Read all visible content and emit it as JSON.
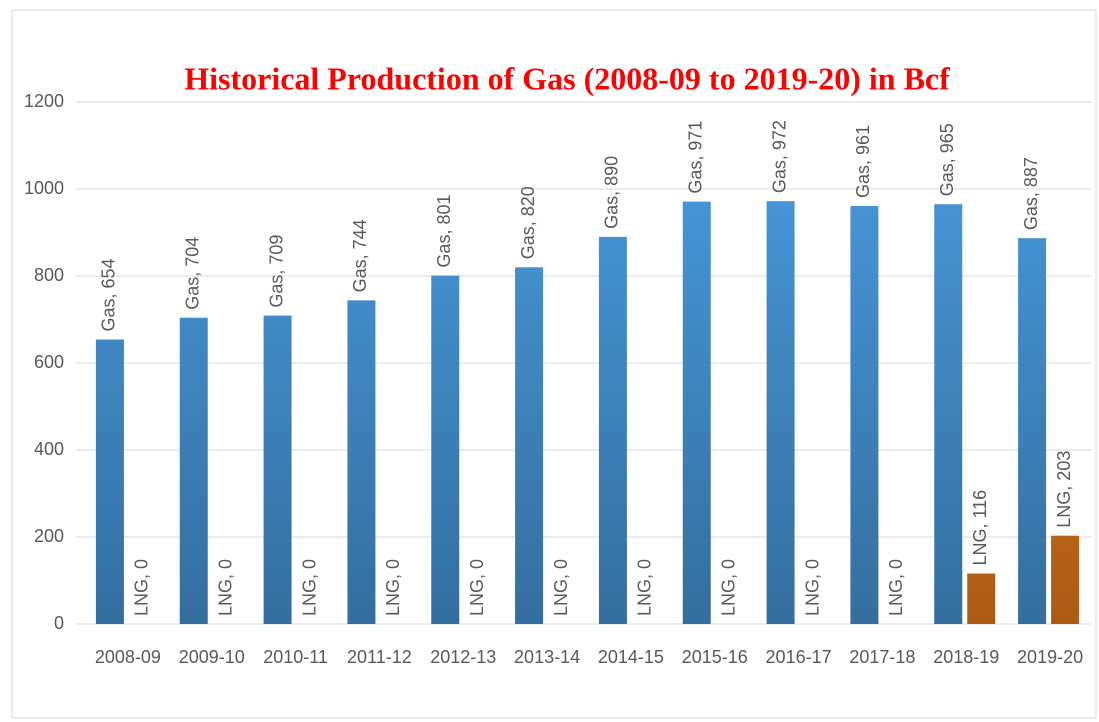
{
  "chart_data": {
    "type": "bar",
    "title": "Historical Production of Gas (2008-09 to 2019-20) in Bcf",
    "categories": [
      "2008-09",
      "2009-10",
      "2010-11",
      "2011-12",
      "2012-13",
      "2013-14",
      "2014-15",
      "2015-16",
      "2016-17",
      "2017-18",
      "2018-19",
      "2019-20"
    ],
    "series": [
      {
        "name": "Gas",
        "color": "#4a9de2",
        "values": [
          654,
          704,
          709,
          744,
          801,
          820,
          890,
          971,
          972,
          961,
          965,
          887
        ],
        "value_labels": [
          "Gas, 654",
          "Gas, 704",
          "Gas, 709",
          "Gas, 744",
          "Gas, 801",
          "Gas, 820",
          "Gas, 890",
          "Gas, 971",
          "Gas, 972",
          "Gas, 961",
          "Gas, 965",
          "Gas, 887"
        ]
      },
      {
        "name": "LNG",
        "color": "#f4821f",
        "values": [
          0,
          0,
          0,
          0,
          0,
          0,
          0,
          0,
          0,
          0,
          116,
          203
        ],
        "value_labels": [
          "LNG, 0",
          "LNG, 0",
          "LNG, 0",
          "LNG, 0",
          "LNG, 0",
          "LNG, 0",
          "LNG, 0",
          "LNG, 0",
          "LNG, 0",
          "LNG, 0",
          "LNG, 116",
          "LNG, 203"
        ]
      }
    ],
    "ylim": [
      0,
      1200
    ],
    "yticks": [
      0,
      200,
      400,
      600,
      800,
      1000,
      1200
    ],
    "grid": true
  }
}
